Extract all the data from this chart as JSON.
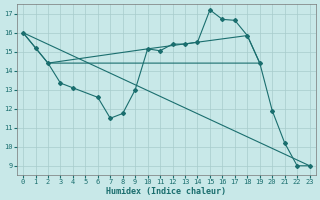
{
  "bg_color": "#c8e8e8",
  "grid_color": "#a8cccc",
  "line_color": "#1a6e6e",
  "xlabel": "Humidex (Indice chaleur)",
  "xlim": [
    -0.5,
    23.5
  ],
  "ylim": [
    8.5,
    17.5
  ],
  "yticks": [
    9,
    10,
    11,
    12,
    13,
    14,
    15,
    16,
    17
  ],
  "xticks": [
    0,
    1,
    2,
    3,
    4,
    5,
    6,
    7,
    8,
    9,
    10,
    11,
    12,
    13,
    14,
    15,
    16,
    17,
    18,
    19,
    20,
    21,
    22,
    23
  ],
  "line1_x": [
    0,
    1,
    2,
    3,
    4,
    6,
    7,
    8,
    9,
    10,
    11,
    12,
    13,
    14,
    15,
    16,
    17,
    18,
    19,
    20,
    21,
    22,
    23
  ],
  "line1_y": [
    16.0,
    15.2,
    14.4,
    13.35,
    13.1,
    12.6,
    11.5,
    11.75,
    13.0,
    15.15,
    15.05,
    15.4,
    15.4,
    15.5,
    17.2,
    16.7,
    16.65,
    15.85,
    14.4,
    11.9,
    10.2,
    9.0,
    9.0
  ],
  "line2_x": [
    0,
    2,
    3,
    19
  ],
  "line2_y": [
    16.0,
    14.4,
    14.4,
    14.4
  ],
  "line2b_x": [
    2,
    10,
    14,
    18,
    19
  ],
  "line2b_y": [
    14.4,
    15.15,
    15.5,
    15.85,
    14.4
  ],
  "line3_x": [
    0,
    23
  ],
  "line3_y": [
    16.0,
    9.0
  ]
}
